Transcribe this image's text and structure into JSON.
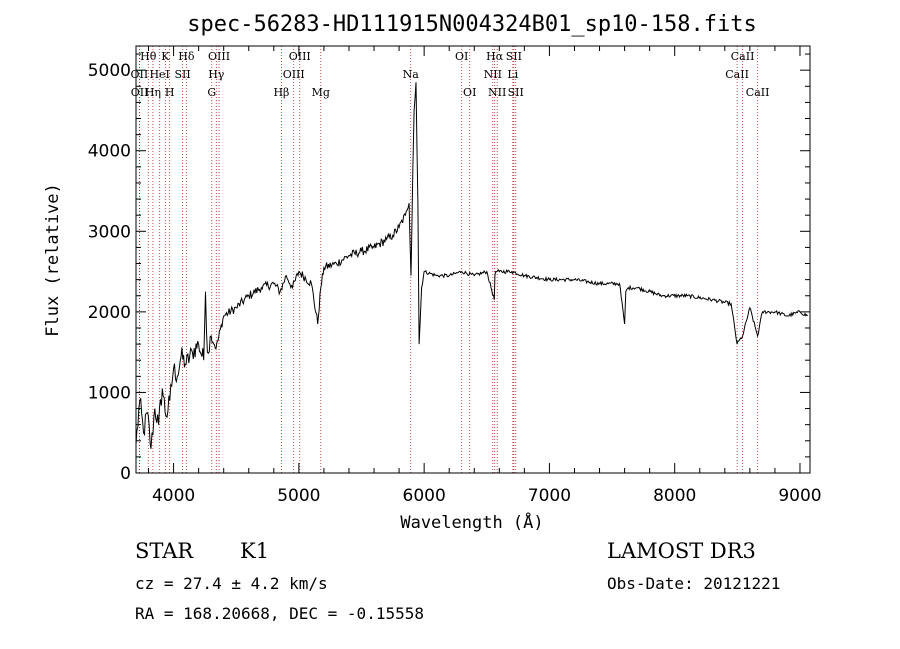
{
  "chart_data": {
    "type": "line",
    "title": "spec-56283-HD111915N004324B01_sp10-158.fits",
    "xlabel": "Wavelength (Å)",
    "ylabel": "Flux (relative)",
    "xlim": [
      3700,
      9080
    ],
    "ylim": [
      0,
      5300
    ],
    "xticks": [
      4000,
      5000,
      6000,
      7000,
      8000,
      9000
    ],
    "yticks": [
      0,
      1000,
      2000,
      3000,
      4000,
      5000
    ],
    "series": [
      {
        "name": "flux",
        "x": [
          3700,
          3730,
          3760,
          3790,
          3820,
          3850,
          3880,
          3910,
          3940,
          3970,
          4000,
          4030,
          4060,
          4100,
          4150,
          4200,
          4240,
          4255,
          4270,
          4300,
          4340,
          4400,
          4500,
          4600,
          4700,
          4800,
          4850,
          4900,
          4950,
          5000,
          5100,
          5150,
          5175,
          5200,
          5300,
          5400,
          5500,
          5600,
          5700,
          5750,
          5800,
          5850,
          5880,
          5895,
          5900,
          5910,
          5920,
          5935,
          5950,
          5960,
          5980,
          6000,
          6100,
          6200,
          6300,
          6400,
          6500,
          6560,
          6565,
          6570,
          6600,
          6700,
          6800,
          7000,
          7200,
          7400,
          7560,
          7600,
          7610,
          7630,
          7700,
          7900,
          8100,
          8300,
          8450,
          8498,
          8542,
          8600,
          8662,
          8700,
          8800,
          8900,
          9000,
          9060
        ],
        "y": [
          350,
          900,
          500,
          750,
          300,
          800,
          600,
          1050,
          700,
          900,
          1300,
          1200,
          1450,
          1350,
          1500,
          1600,
          1400,
          2250,
          1500,
          1700,
          1550,
          1950,
          2050,
          2200,
          2300,
          2350,
          2250,
          2450,
          2300,
          2500,
          2350,
          1850,
          2300,
          2550,
          2600,
          2700,
          2750,
          2800,
          2900,
          2950,
          3050,
          3200,
          3350,
          2450,
          2850,
          3800,
          4500,
          4850,
          3350,
          1600,
          2300,
          2500,
          2450,
          2450,
          2500,
          2450,
          2500,
          2150,
          2450,
          2500,
          2500,
          2500,
          2450,
          2400,
          2400,
          2350,
          2350,
          1850,
          2250,
          2300,
          2300,
          2200,
          2200,
          2150,
          2100,
          1600,
          1700,
          2050,
          1700,
          2000,
          2000,
          1950,
          2000,
          1950
        ]
      }
    ],
    "lines": [
      {
        "label": "Hθ",
        "wave": 3798,
        "row": 0
      },
      {
        "label": "OII",
        "wave": 3727,
        "row": 1
      },
      {
        "label": "OII",
        "wave": 3729,
        "row": 2
      },
      {
        "label": "Hη",
        "wave": 3835,
        "row": 2
      },
      {
        "label": "Hδ",
        "wave": 4102,
        "row": 0
      },
      {
        "label": "K",
        "wave": 3934,
        "row": 0
      },
      {
        "label": "HeI",
        "wave": 3889,
        "row": 1
      },
      {
        "label": "SII",
        "wave": 4072,
        "row": 1
      },
      {
        "label": "H",
        "wave": 3969,
        "row": 2
      },
      {
        "label": "OIII",
        "wave": 4363,
        "row": 0
      },
      {
        "label": "Hγ",
        "wave": 4341,
        "row": 1
      },
      {
        "label": "G",
        "wave": 4305,
        "row": 2
      },
      {
        "label": "OIII",
        "wave": 5007,
        "row": 0
      },
      {
        "label": "OIII",
        "wave": 4959,
        "row": 1
      },
      {
        "label": "Hβ",
        "wave": 4861,
        "row": 2
      },
      {
        "label": "Mg",
        "wave": 5175,
        "row": 2
      },
      {
        "label": "Na",
        "wave": 5893,
        "row": 1
      },
      {
        "label": "OI",
        "wave": 6300,
        "row": 0
      },
      {
        "label": "OI",
        "wave": 6364,
        "row": 2
      },
      {
        "label": "Hα",
        "wave": 6563,
        "row": 0
      },
      {
        "label": "NII",
        "wave": 6548,
        "row": 1
      },
      {
        "label": "NII",
        "wave": 6583,
        "row": 2
      },
      {
        "label": "SII",
        "wave": 6716,
        "row": 0
      },
      {
        "label": "Li",
        "wave": 6708,
        "row": 1
      },
      {
        "label": "SII",
        "wave": 6731,
        "row": 2
      },
      {
        "label": "CaII",
        "wave": 8542,
        "row": 0
      },
      {
        "label": "CaII",
        "wave": 8498,
        "row": 1
      },
      {
        "label": "CaII",
        "wave": 8662,
        "row": 2
      }
    ]
  },
  "info": {
    "object_class": "STAR",
    "subclass": "K1",
    "survey": "LAMOST DR3",
    "cz": "cz = 27.4 ± 4.2 km/s",
    "obs_date": "Obs-Date: 20121221",
    "coords": "RA = 168.20668, DEC =  -0.15558"
  },
  "colors": {
    "spectrum": "#000000",
    "line_marker": "#b22222",
    "axes": "#000000",
    "background": "#ffffff"
  }
}
